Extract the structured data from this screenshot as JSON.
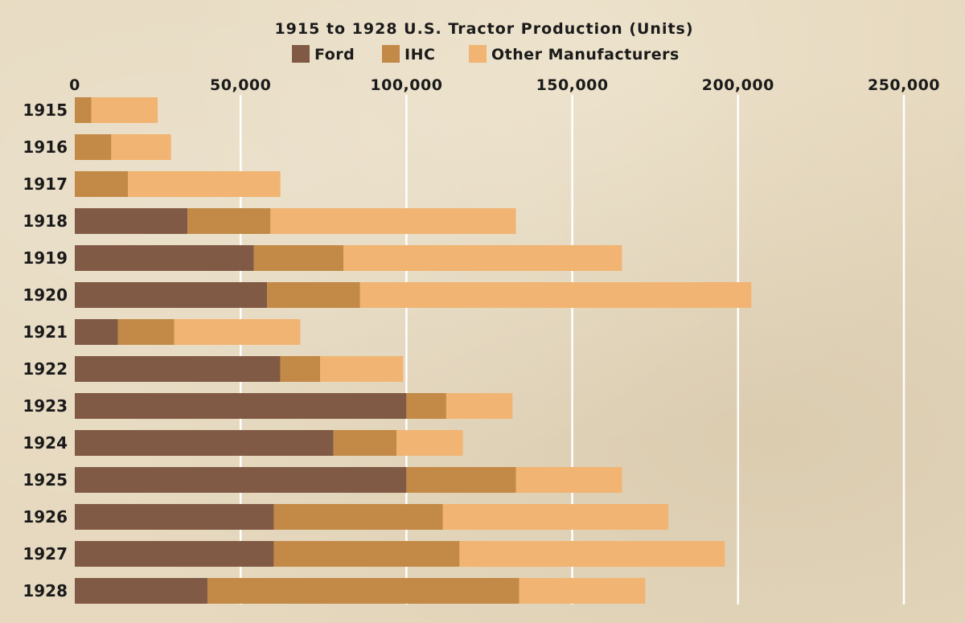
{
  "chart_data": {
    "type": "bar",
    "orientation": "horizontal",
    "stacked": true,
    "title": "1915 to 1928 U.S. Tractor Production (Units)",
    "xlabel": "",
    "ylabel": "",
    "xlim": [
      0,
      250000
    ],
    "x_ticks": [
      0,
      50000,
      100000,
      150000,
      200000,
      250000
    ],
    "x_tick_labels": [
      "0",
      "50,000",
      "100,000",
      "150,000",
      "200,000",
      "250,000"
    ],
    "tick_position": "top",
    "grid": true,
    "legend_position": "top",
    "categories": [
      "1915",
      "1916",
      "1917",
      "1918",
      "1919",
      "1920",
      "1921",
      "1922",
      "1923",
      "1924",
      "1925",
      "1926",
      "1927",
      "1928"
    ],
    "series": [
      {
        "name": "Ford",
        "color": "#805a44",
        "values": [
          0,
          0,
          0,
          34000,
          54000,
          58000,
          13000,
          62000,
          100000,
          78000,
          100000,
          60000,
          60000,
          40000
        ]
      },
      {
        "name": "IHC",
        "color": "#c38946",
        "values": [
          5000,
          11000,
          16000,
          25000,
          27000,
          28000,
          17000,
          12000,
          12000,
          19000,
          33000,
          51000,
          56000,
          94000
        ]
      },
      {
        "name": "Other Manufacturers",
        "color": "#f1b472",
        "values": [
          20000,
          18000,
          46000,
          74000,
          84000,
          118000,
          38000,
          25000,
          20000,
          20000,
          32000,
          68000,
          80000,
          38000
        ]
      }
    ]
  },
  "colors": {
    "background": "#e6d9bf",
    "gridline": "#ffffff",
    "text": "#1a1a1a"
  }
}
